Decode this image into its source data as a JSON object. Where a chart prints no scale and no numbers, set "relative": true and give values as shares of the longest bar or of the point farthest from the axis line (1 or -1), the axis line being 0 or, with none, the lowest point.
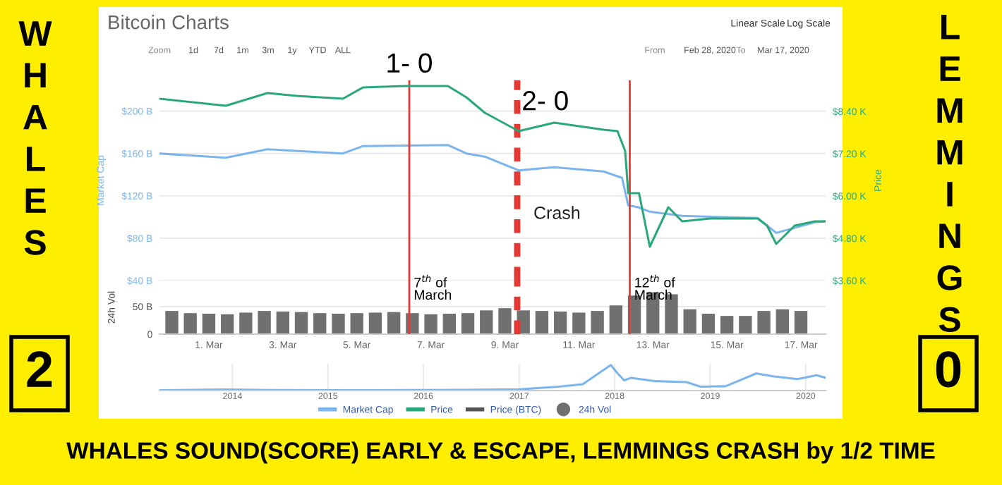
{
  "chart_data": [
    {
      "type": "line",
      "title": "Bitcoin Charts",
      "ylabel": "Market Cap",
      "y2label": "Price",
      "annotations": [
        "Linear Scale",
        "Log Scale",
        "Zoom",
        "1d",
        "7d",
        "1m",
        "3m",
        "1y",
        "YTD",
        "ALL",
        "From",
        "Feb 28, 2020",
        "To",
        "Mar 17, 2020",
        "Crash",
        "WHALES",
        "2",
        "LEMMINGS",
        "0",
        "WHALES SOUND(SCORE) EARLY & ESCAPE, LEMMINGS CRASH by 1/2 TIME"
      ],
      "series": [
        {
          "name": "Market Cap",
          "color": "#7cb5ec",
          "x": [
            "2020-02-28T16:00",
            "2020-03-01T11:00",
            "2020-03-02T14:00",
            "2020-03-04T15:00",
            "2020-03-05T04:00",
            "2020-03-07T11:00",
            "2020-03-07T23:00",
            "2020-03-08T11:00",
            "2020-03-09T09:00",
            "2020-03-10T08:00",
            "2020-03-11T16:00",
            "2020-03-12T04:00",
            "2020-03-12T08:00",
            "2020-03-12T15:00",
            "2020-03-12T22:00",
            "2020-03-13T19:00",
            "2020-03-15T20:00",
            "2020-03-16T08:00",
            "2020-03-17T09:00",
            "2020-03-17T16:00"
          ],
          "values": [
            160,
            156,
            164,
            160,
            167,
            168,
            160,
            157,
            144,
            147,
            143,
            137,
            111,
            109,
            105,
            101,
            99,
            85,
            95,
            96
          ]
        },
        {
          "name": "Price",
          "color": "#2ba77b",
          "axis": "y2",
          "x": [
            "2020-02-28T16:00",
            "2020-03-01T11:00",
            "2020-03-02T14:00",
            "2020-03-03T09:00",
            "2020-03-04T15:00",
            "2020-03-05T04:00",
            "2020-03-06T07:00",
            "2020-03-07T11:00",
            "2020-03-07T23:00",
            "2020-03-08T11:00",
            "2020-03-09T09:00",
            "2020-03-10T08:00",
            "2020-03-11T16:00",
            "2020-03-12T01:00",
            "2020-03-12T06:00",
            "2020-03-12T08:00",
            "2020-03-12T15:00",
            "2020-03-12T22:00",
            "2020-03-13T10:00",
            "2020-03-13T19:00",
            "2020-03-14T13:00",
            "2020-03-15T20:00",
            "2020-03-16T02:00",
            "2020-03-16T08:00",
            "2020-03-16T20:00",
            "2020-03-17T09:00",
            "2020-03-17T16:00"
          ],
          "values": [
            8.76,
            8.56,
            8.92,
            8.84,
            8.76,
            9.08,
            9.12,
            9.12,
            8.8,
            8.36,
            7.84,
            8.08,
            7.88,
            7.84,
            7.28,
            6.08,
            6.08,
            4.56,
            5.68,
            5.28,
            5.36,
            5.36,
            5.16,
            4.64,
            5.16,
            5.28,
            5.28
          ]
        },
        {
          "name": "Price (BTC)",
          "color": "#555555"
        }
      ],
      "xlim": [
        "2020-02-28T16:00",
        "2020-03-17T16:00"
      ],
      "ylim": [
        40,
        229
      ],
      "yticks": [
        {
          "value": 40,
          "label": "$40 B"
        },
        {
          "value": 80,
          "label": "$80 B"
        },
        {
          "value": 120,
          "label": "$120 B"
        },
        {
          "value": 160,
          "label": "$160 B"
        },
        {
          "value": 200,
          "label": "$200 B"
        }
      ],
      "y2lim": [
        3.6,
        9.28
      ],
      "y2ticks": [
        {
          "value": 3.6,
          "label": "$3.60 K"
        },
        {
          "value": 4.8,
          "label": "$4.80 K"
        },
        {
          "value": 6.0,
          "label": "$6.00 K"
        },
        {
          "value": 7.2,
          "label": "$7.20 K"
        },
        {
          "value": 8.4,
          "label": "$8.40 K"
        }
      ],
      "ref_lines": [
        {
          "axis": "x",
          "value": "2020-03-06T10:00",
          "label": "1- 0",
          "color": "#e53935"
        },
        {
          "axis": "x",
          "value": "2020-03-09T08:00",
          "label": "2- 0",
          "color": "#e53935",
          "line_style": "dashed"
        },
        {
          "axis": "x",
          "value": "2020-03-12T09:00",
          "label": null,
          "color": "#e53935"
        }
      ],
      "grid": "y",
      "legend": "bottom",
      "tick_labels": "y"
    },
    {
      "type": "bar",
      "ylabel": "24h Vol",
      "series": [
        {
          "name": "24h Vol",
          "color": "#707070",
          "x": [
            "2020-02-29T00:00",
            "2020-02-29T12:00",
            "2020-03-01T00:00",
            "2020-03-01T12:00",
            "2020-03-02T00:00",
            "2020-03-02T12:00",
            "2020-03-03T00:00",
            "2020-03-03T12:00",
            "2020-03-04T00:00",
            "2020-03-04T12:00",
            "2020-03-05T00:00",
            "2020-03-05T12:00",
            "2020-03-06T00:00",
            "2020-03-06T12:00",
            "2020-03-07T00:00",
            "2020-03-07T12:00",
            "2020-03-08T00:00",
            "2020-03-08T12:00",
            "2020-03-09T00:00",
            "2020-03-09T12:00",
            "2020-03-10T00:00",
            "2020-03-10T12:00",
            "2020-03-11T00:00",
            "2020-03-11T12:00",
            "2020-03-12T00:00",
            "2020-03-12T12:00",
            "2020-03-13T00:00",
            "2020-03-13T12:00",
            "2020-03-14T00:00",
            "2020-03-14T12:00",
            "2020-03-15T00:00",
            "2020-03-15T12:00",
            "2020-03-16T00:00",
            "2020-03-16T12:00",
            "2020-03-17T00:00"
          ],
          "values": [
            42,
            38,
            37,
            36,
            39,
            42,
            41,
            40,
            38,
            37,
            38,
            39,
            40,
            38,
            36,
            37,
            38,
            43,
            47,
            43,
            42,
            41,
            39,
            42,
            52,
            70,
            76,
            72,
            45,
            37,
            33,
            33,
            42,
            45,
            42
          ]
        }
      ],
      "xlim": [
        "2020-02-28T16:00",
        "2020-03-17T16:00"
      ],
      "xticks": [
        {
          "value": "2020-03-01",
          "label": "1. Mar"
        },
        {
          "value": "2020-03-03",
          "label": "3. Mar"
        },
        {
          "value": "2020-03-05",
          "label": "5. Mar"
        },
        {
          "value": "2020-03-07",
          "label": "7. Mar"
        },
        {
          "value": "2020-03-09",
          "label": "9. Mar"
        },
        {
          "value": "2020-03-11",
          "label": "11. Mar"
        },
        {
          "value": "2020-03-13",
          "label": "13. Mar"
        },
        {
          "value": "2020-03-15",
          "label": "15. Mar"
        },
        {
          "value": "2020-03-17",
          "label": "17. Mar"
        }
      ],
      "ylim": [
        0,
        97
      ],
      "yticks": [
        0,
        {
          "value": 50,
          "label": "50 B"
        }
      ],
      "ref_lines": [
        {
          "axis": "x",
          "value": "2020-03-06T10:00",
          "label": "7$^{th}$ of\nMarch",
          "color": "#e53935"
        },
        {
          "axis": "x",
          "value": "2020-03-09T08:00",
          "label": null,
          "color": "#e53935",
          "line_style": "dashed"
        },
        {
          "axis": "x",
          "value": "2020-03-12T09:00",
          "label": "12$^{th}$ of\nMarch",
          "color": "#e53935"
        }
      ],
      "grid": "y",
      "legend": "bottom"
    },
    {
      "type": "line",
      "relative": true,
      "series": [
        {
          "color": "#7cb5ec",
          "x": [
            "2013-04-01",
            "2013-11-30",
            "2014-06-01",
            "2015-06-01",
            "2016-06-01",
            "2017-01-01",
            "2017-06-01",
            "2017-09-01",
            "2017-12-17",
            "2018-01-10",
            "2018-02-06",
            "2018-03-05",
            "2018-06-01",
            "2018-10-01",
            "2018-11-25",
            "2019-03-01",
            "2019-06-26",
            "2019-09-01",
            "2019-12-01",
            "2020-02-12",
            "2020-03-17"
          ],
          "values": [
            0.01,
            0.04,
            0.02,
            0.01,
            0.03,
            0.05,
            0.15,
            0.25,
            1.0,
            0.7,
            0.4,
            0.5,
            0.37,
            0.33,
            0.15,
            0.17,
            0.67,
            0.55,
            0.45,
            0.6,
            0.5
          ]
        }
      ],
      "xlim": [
        "2013-03-28",
        "2020-03-17"
      ],
      "xticks": [
        {
          "value": "2014-01-01",
          "label": "2014"
        },
        {
          "value": "2015-01-01",
          "label": "2015"
        },
        {
          "value": "2016-01-01",
          "label": "2016"
        },
        {
          "value": "2017-01-01",
          "label": "2017"
        },
        {
          "value": "2018-01-01",
          "label": "2018"
        },
        {
          "value": "2019-01-01",
          "label": "2019"
        },
        {
          "value": "2020-01-01",
          "label": "2020"
        }
      ],
      "grid": "x"
    }
  ]
}
